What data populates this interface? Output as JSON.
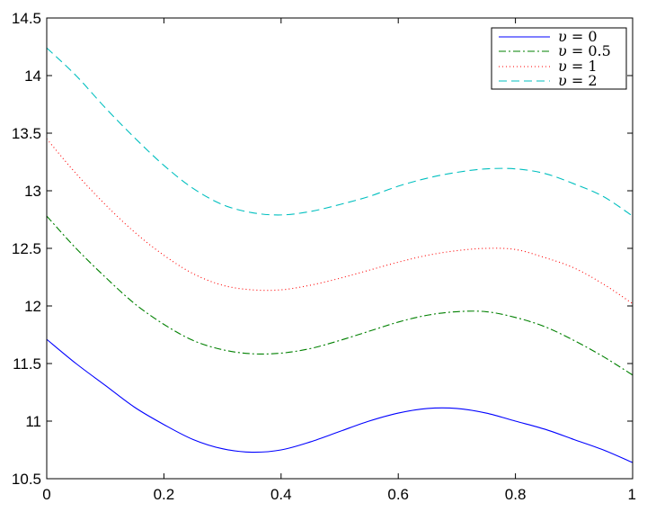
{
  "chart_data": {
    "type": "line",
    "title": "",
    "xlabel": "",
    "ylabel": "",
    "xlim": [
      0,
      1
    ],
    "ylim": [
      10.5,
      14.5
    ],
    "xticks": [
      "0",
      "0.2",
      "0.4",
      "0.6",
      "0.8",
      "1"
    ],
    "yticks": [
      "10.5",
      "11",
      "11.5",
      "12",
      "12.5",
      "13",
      "13.5",
      "14",
      "14.5"
    ],
    "grid": false,
    "legend_position": "top-right",
    "x": [
      0,
      0.05,
      0.1,
      0.15,
      0.2,
      0.25,
      0.3,
      0.35,
      0.4,
      0.45,
      0.5,
      0.55,
      0.6,
      0.65,
      0.7,
      0.75,
      0.8,
      0.85,
      0.9,
      0.95,
      1
    ],
    "series": [
      {
        "name": "υ = 0",
        "var": "υ",
        "val": "0",
        "color": "#0000ff",
        "dash": "solid",
        "values": [
          11.71,
          11.5,
          11.31,
          11.12,
          10.97,
          10.84,
          10.76,
          10.73,
          10.75,
          10.82,
          10.91,
          11.0,
          11.07,
          11.11,
          11.11,
          11.07,
          11.0,
          10.93,
          10.84,
          10.75,
          10.64
        ]
      },
      {
        "name": "υ = 0.5",
        "var": "υ",
        "val": "0.5",
        "color": "#008000",
        "dash": "dashdot",
        "values": [
          12.78,
          12.5,
          12.25,
          12.02,
          11.84,
          11.7,
          11.62,
          11.585,
          11.59,
          11.63,
          11.7,
          11.78,
          11.86,
          11.92,
          11.95,
          11.95,
          11.9,
          11.82,
          11.7,
          11.56,
          11.4
        ]
      },
      {
        "name": "υ = 1",
        "var": "υ",
        "val": "1",
        "color": "#ff0000",
        "dash": "dotted",
        "values": [
          13.45,
          13.15,
          12.88,
          12.64,
          12.44,
          12.28,
          12.18,
          12.14,
          12.14,
          12.18,
          12.24,
          12.31,
          12.38,
          12.44,
          12.48,
          12.5,
          12.49,
          12.42,
          12.33,
          12.19,
          12.02
        ]
      },
      {
        "name": "υ = 2",
        "var": "υ",
        "val": "2",
        "color": "#00bfbf",
        "dash": "dashed",
        "values": [
          14.24,
          14.0,
          13.72,
          13.46,
          13.22,
          13.02,
          12.88,
          12.81,
          12.79,
          12.82,
          12.88,
          12.95,
          13.04,
          13.11,
          13.16,
          13.19,
          13.19,
          13.15,
          13.06,
          12.95,
          12.78
        ]
      }
    ]
  }
}
